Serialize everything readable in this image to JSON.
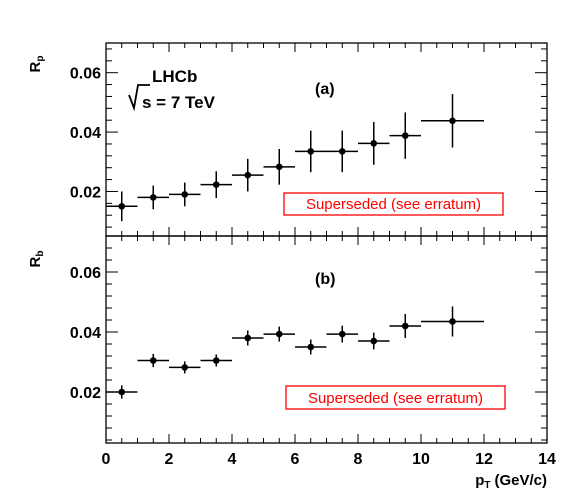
{
  "chart_data": [
    {
      "type": "scatter",
      "panel_label": "(a)",
      "ylabel": "Rp",
      "ylabel_main": "R",
      "ylabel_sub": "p",
      "experiment": "LHCb",
      "energy_label": "s = 7 TeV",
      "stamp": "Superseded (see erratum)",
      "xlim": [
        0,
        14
      ],
      "ylim": [
        0.005,
        0.07
      ],
      "yticks": [
        0.02,
        0.04,
        0.06
      ],
      "ytick_labels": [
        "0.02",
        "0.04",
        "0.06"
      ],
      "points": [
        {
          "x": 0.5,
          "xerr": 0.5,
          "y": 0.015,
          "yerr": 0.005
        },
        {
          "x": 1.5,
          "xerr": 0.5,
          "y": 0.018,
          "yerr": 0.004
        },
        {
          "x": 2.5,
          "xerr": 0.5,
          "y": 0.019,
          "yerr": 0.004
        },
        {
          "x": 3.5,
          "xerr": 0.5,
          "y": 0.0223,
          "yerr": 0.0045
        },
        {
          "x": 4.5,
          "xerr": 0.5,
          "y": 0.0255,
          "yerr": 0.0055
        },
        {
          "x": 5.5,
          "xerr": 0.5,
          "y": 0.0283,
          "yerr": 0.006
        },
        {
          "x": 6.5,
          "xerr": 0.5,
          "y": 0.0335,
          "yerr": 0.007
        },
        {
          "x": 7.5,
          "xerr": 0.5,
          "y": 0.0335,
          "yerr": 0.007
        },
        {
          "x": 8.5,
          "xerr": 0.5,
          "y": 0.0362,
          "yerr": 0.0072
        },
        {
          "x": 9.5,
          "xerr": 0.5,
          "y": 0.0388,
          "yerr": 0.0078
        },
        {
          "x": 11.0,
          "xerr": 1.0,
          "y": 0.0438,
          "yerr": 0.009
        }
      ]
    },
    {
      "type": "scatter",
      "panel_label": "(b)",
      "ylabel": "Rb",
      "ylabel_main": "R",
      "ylabel_sub": "b",
      "stamp": "Superseded (see erratum)",
      "xlabel": "pT (GeV/c)",
      "xlabel_main": "p",
      "xlabel_sub": "T",
      "xlabel_unit": "(GeV/c)",
      "xlim": [
        0,
        14
      ],
      "ylim": [
        0.003,
        0.072
      ],
      "xticks": [
        0,
        2,
        4,
        6,
        8,
        10,
        12,
        14
      ],
      "xtick_labels": [
        "0",
        "2",
        "4",
        "6",
        "8",
        "10",
        "12",
        "14"
      ],
      "yticks": [
        0.02,
        0.04,
        0.06
      ],
      "ytick_labels": [
        "0.02",
        "0.04",
        "0.06"
      ],
      "points": [
        {
          "x": 0.5,
          "xerr": 0.5,
          "y": 0.02,
          "yerr": 0.0022
        },
        {
          "x": 1.5,
          "xerr": 0.5,
          "y": 0.0305,
          "yerr": 0.0022
        },
        {
          "x": 2.5,
          "xerr": 0.5,
          "y": 0.0282,
          "yerr": 0.002
        },
        {
          "x": 3.5,
          "xerr": 0.5,
          "y": 0.0305,
          "yerr": 0.002
        },
        {
          "x": 4.5,
          "xerr": 0.5,
          "y": 0.038,
          "yerr": 0.0025
        },
        {
          "x": 5.5,
          "xerr": 0.5,
          "y": 0.0393,
          "yerr": 0.0025
        },
        {
          "x": 6.5,
          "xerr": 0.5,
          "y": 0.035,
          "yerr": 0.0025
        },
        {
          "x": 7.5,
          "xerr": 0.5,
          "y": 0.0393,
          "yerr": 0.0028
        },
        {
          "x": 8.5,
          "xerr": 0.5,
          "y": 0.037,
          "yerr": 0.0028
        },
        {
          "x": 9.5,
          "xerr": 0.5,
          "y": 0.042,
          "yerr": 0.004
        },
        {
          "x": 11.0,
          "xerr": 1.0,
          "y": 0.0435,
          "yerr": 0.005
        }
      ]
    }
  ]
}
